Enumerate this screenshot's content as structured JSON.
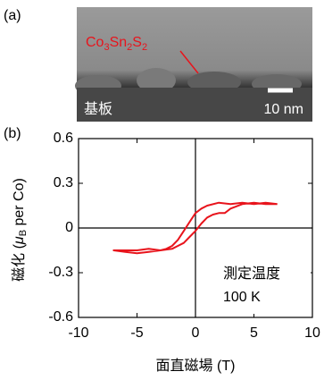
{
  "panel_a": {
    "label": "(a)",
    "formula_parts": [
      "Co",
      "3",
      "Sn",
      "2",
      "S",
      "2"
    ],
    "substrate_label": "基板",
    "scale_bar_label": "10 nm"
  },
  "chart_data": {
    "type": "line",
    "panel_label": "(b)",
    "xlabel": "面直磁場 (T)",
    "ylabel_parts": [
      "磁化 (",
      "μ",
      "B",
      " per Co)"
    ],
    "annotation": [
      "測定温度",
      "100 K"
    ],
    "xlim": [
      -10,
      10
    ],
    "xticks": [
      -10,
      -5,
      0,
      5,
      10
    ],
    "ylim": [
      -0.6,
      0.6
    ],
    "yticks": [
      0.6,
      0.3,
      0,
      -0.3,
      -0.6
    ],
    "series": [
      {
        "color": "#e8141c",
        "x": [
          7,
          6,
          5,
          4,
          3,
          2,
          1,
          0.5,
          0,
          -0.5,
          -1,
          -1.5,
          -2,
          -2.5,
          -3,
          -4,
          -5,
          -6,
          -7,
          -6,
          -5,
          -4,
          -3,
          -2,
          -1.5,
          -1,
          -0.5,
          0,
          0.5,
          1,
          1.5,
          2,
          2.5,
          3,
          4,
          5,
          6,
          7
        ],
        "values": [
          0.16,
          0.17,
          0.16,
          0.17,
          0.16,
          0.17,
          0.15,
          0.13,
          0.1,
          0.04,
          -0.02,
          -0.08,
          -0.12,
          -0.14,
          -0.15,
          -0.14,
          -0.15,
          -0.15,
          -0.15,
          -0.16,
          -0.17,
          -0.16,
          -0.15,
          -0.14,
          -0.12,
          -0.1,
          -0.06,
          -0.02,
          0.03,
          0.07,
          0.09,
          0.1,
          0.1,
          0.13,
          0.16,
          0.17,
          0.16,
          0.16
        ]
      }
    ]
  }
}
